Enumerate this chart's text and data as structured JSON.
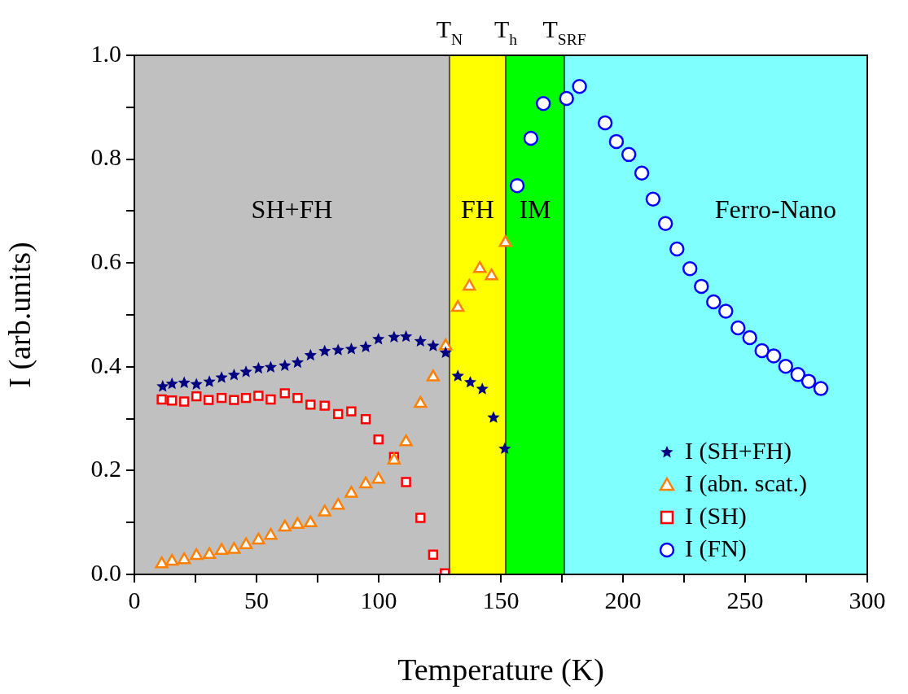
{
  "chart_data": {
    "type": "scatter",
    "xlabel": "Temperature (K)",
    "ylabel": "I (arb.units)",
    "xlim": [
      0,
      300
    ],
    "xticks": [
      0,
      {
        "value": 25,
        "label": null
      },
      50,
      {
        "value": 75,
        "label": null
      },
      100,
      {
        "value": 125,
        "label": null
      },
      150,
      {
        "value": 175,
        "label": null
      },
      200,
      {
        "value": 225,
        "label": null
      },
      250,
      {
        "value": 275,
        "label": null
      },
      300
    ],
    "ylim": [
      0,
      1
    ],
    "yticks": [
      {
        "value": 0,
        "label": "0.0"
      },
      {
        "value": 0.1,
        "label": null
      },
      0.2,
      {
        "value": 0.3,
        "label": null
      },
      0.4,
      {
        "value": 0.5,
        "label": null
      },
      0.6,
      {
        "value": 0.7,
        "label": null
      },
      0.8,
      {
        "value": 0.9,
        "label": null
      },
      {
        "value": 1,
        "label": "1.0"
      }
    ],
    "grid": false,
    "legend": "bottom right",
    "bands": [
      {
        "axis": "x",
        "from": 0,
        "to": 129,
        "label": "SH+FH",
        "color": "#c0c0c0"
      },
      {
        "axis": "x",
        "from": 129,
        "to": 152,
        "label": "FH",
        "color": "#ffff00"
      },
      {
        "axis": "x",
        "from": 152,
        "to": 176,
        "label": "IM",
        "color": "#00ff00"
      },
      {
        "axis": "x",
        "from": 176,
        "to": 300,
        "label": "Ferro-Nano",
        "color": "#80ffff"
      }
    ],
    "ref_lines": [
      {
        "axis": "x",
        "value": 129,
        "label": "T$_{N}$",
        "color": "#000000"
      },
      {
        "axis": "x",
        "value": 152,
        "label": "T$_{h}$",
        "color": "#000000"
      },
      {
        "axis": "x",
        "value": 176,
        "label": "T$_{SRF}$",
        "color": "#000000"
      }
    ],
    "series": [
      {
        "name": "I (SH+FH)",
        "color": "#000080",
        "marker": "star",
        "x": [
          11.6,
          15.4,
          20.4,
          25.4,
          30.7,
          35.7,
          40.8,
          45.7,
          50.8,
          55.8,
          61.6,
          66.8,
          72.1,
          77.9,
          83.4,
          88.8,
          94.7,
          99.9,
          106.3,
          111.2,
          117.1,
          122.3,
          127.4,
          132.4,
          137.5,
          142.4,
          147,
          151.6
        ],
        "values": [
          0.362,
          0.367,
          0.369,
          0.366,
          0.371,
          0.379,
          0.384,
          0.39,
          0.397,
          0.399,
          0.402,
          0.408,
          0.422,
          0.43,
          0.432,
          0.434,
          0.438,
          0.453,
          0.457,
          0.458,
          0.449,
          0.44,
          0.427,
          0.382,
          0.37,
          0.357,
          0.302,
          0.242
        ]
      },
      {
        "name": "I (abn. scat.)",
        "color": "#ff8000",
        "marker": "triangle",
        "x": [
          11.2,
          15.4,
          20.4,
          25.4,
          30.7,
          35.7,
          40.8,
          45.7,
          50.8,
          55.8,
          61.6,
          66.8,
          72.1,
          77.9,
          83.4,
          88.8,
          94.7,
          99.9,
          106.3,
          111.2,
          117.1,
          122.3,
          127.4,
          132.4,
          137.1,
          141.4,
          146.2,
          151.9
        ],
        "values": [
          0.02,
          0.025,
          0.028,
          0.036,
          0.038,
          0.046,
          0.048,
          0.057,
          0.066,
          0.075,
          0.091,
          0.096,
          0.099,
          0.12,
          0.133,
          0.156,
          0.174,
          0.183,
          0.22,
          0.255,
          0.329,
          0.38,
          0.44,
          0.514,
          0.555,
          0.589,
          0.575,
          0.639
        ]
      },
      {
        "name": "I (SH)",
        "color": "#ff0000",
        "marker": "square",
        "x": [
          11.2,
          15.4,
          20.4,
          25.4,
          30.4,
          35.7,
          40.8,
          45.7,
          50.8,
          55.8,
          61.6,
          66.8,
          72.1,
          77.9,
          83.4,
          88.8,
          94.7,
          99.9,
          106.3,
          111.2,
          117.1,
          122.3,
          127.1
        ],
        "values": [
          0.337,
          0.335,
          0.333,
          0.343,
          0.336,
          0.34,
          0.336,
          0.34,
          0.344,
          0.337,
          0.349,
          0.34,
          0.327,
          0.325,
          0.309,
          0.314,
          0.299,
          0.26,
          0.226,
          0.178,
          0.109,
          0.038,
          0.002
        ]
      },
      {
        "name": "I (FN)",
        "color": "#0000ff",
        "marker": "circle",
        "x": [
          156.7,
          162.3,
          167.4,
          176.9,
          182.2,
          192.7,
          197.3,
          202.4,
          207.7,
          212.3,
          217.4,
          222.1,
          227.4,
          232.1,
          237.1,
          242.1,
          247.1,
          251.9,
          256.9,
          261.7,
          266.6,
          271.6,
          276,
          281
        ],
        "values": [
          0.749,
          0.84,
          0.907,
          0.917,
          0.94,
          0.87,
          0.834,
          0.809,
          0.773,
          0.723,
          0.676,
          0.627,
          0.589,
          0.555,
          0.525,
          0.507,
          0.475,
          0.456,
          0.431,
          0.421,
          0.401,
          0.385,
          0.372,
          0.358
        ]
      }
    ]
  }
}
